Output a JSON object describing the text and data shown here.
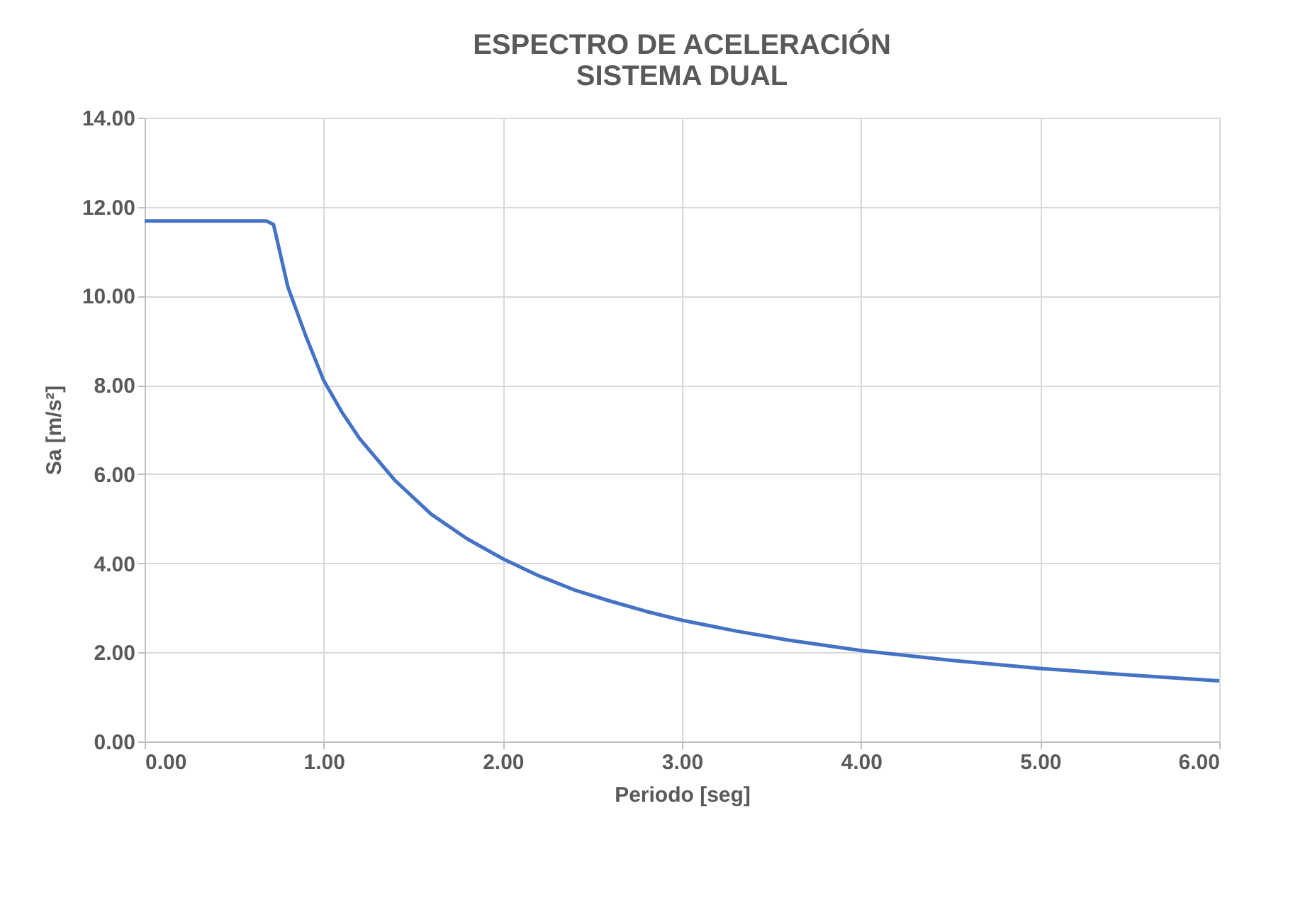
{
  "chart_data": {
    "type": "line",
    "title": [
      "ESPECTRO DE ACELERACIÓN",
      "SISTEMA DUAL"
    ],
    "xlabel": "Periodo [seg]",
    "ylabel": "Sa [m/s²]",
    "x": [
      0,
      0.2,
      0.4,
      0.6,
      0.68,
      0.72,
      0.8,
      0.9,
      1.0,
      1.1,
      1.2,
      1.4,
      1.6,
      1.8,
      2.0,
      2.2,
      2.4,
      2.6,
      2.8,
      3.0,
      3.3,
      3.6,
      4.0,
      4.5,
      5.0,
      5.5,
      6.0
    ],
    "series": [
      {
        "color": "#4472c4",
        "values": [
          11.68,
          11.68,
          11.68,
          11.68,
          11.68,
          11.6,
          10.2,
          9.1,
          8.1,
          7.4,
          6.8,
          5.85,
          5.1,
          4.55,
          4.1,
          3.72,
          3.4,
          3.15,
          2.92,
          2.72,
          2.48,
          2.27,
          2.04,
          1.82,
          1.64,
          1.49,
          1.36
        ]
      }
    ],
    "xlim": [
      0,
      6
    ],
    "xticks": [
      {
        "value": 0,
        "label": "0.00"
      },
      {
        "value": 1,
        "label": "1.00"
      },
      {
        "value": 2,
        "label": "2.00"
      },
      {
        "value": 3,
        "label": "3.00"
      },
      {
        "value": 4,
        "label": "4.00"
      },
      {
        "value": 5,
        "label": "5.00"
      },
      {
        "value": 6,
        "label": "6.00"
      }
    ],
    "ylim": [
      0,
      14
    ],
    "yticks": [
      {
        "value": 0,
        "label": "0.00"
      },
      {
        "value": 2,
        "label": "2.00"
      },
      {
        "value": 4,
        "label": "4.00"
      },
      {
        "value": 6,
        "label": "6.00"
      },
      {
        "value": 8,
        "label": "8.00"
      },
      {
        "value": 10,
        "label": "10.00"
      },
      {
        "value": 12,
        "label": "12.00"
      },
      {
        "value": 14,
        "label": "14.00"
      }
    ],
    "grid": true,
    "marker": "none",
    "line_style": "solid"
  }
}
